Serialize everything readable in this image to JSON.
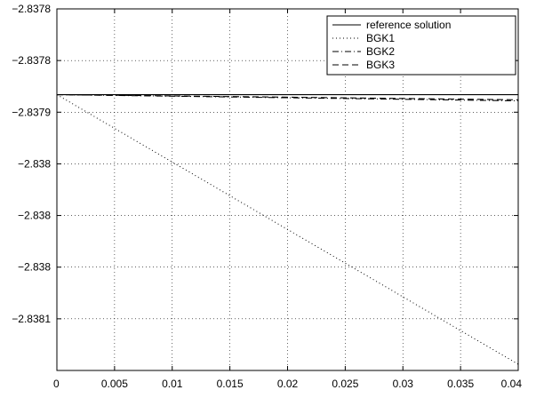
{
  "chart_data": {
    "type": "line",
    "title": "",
    "xlabel": "",
    "ylabel": "",
    "xlim": [
      0,
      0.04
    ],
    "ylim": [
      -2.83812,
      -2.83777
    ],
    "grid": true,
    "legend_position": "top-right",
    "xticks": [
      {
        "value": 0,
        "label": "0"
      },
      {
        "value": 0.005,
        "label": "0.005"
      },
      {
        "value": 0.01,
        "label": "0.01"
      },
      {
        "value": 0.015,
        "label": "0.015"
      },
      {
        "value": 0.02,
        "label": "0.02"
      },
      {
        "value": 0.025,
        "label": "0.025"
      },
      {
        "value": 0.03,
        "label": "0.03"
      },
      {
        "value": 0.035,
        "label": "0.035"
      },
      {
        "value": 0.04,
        "label": "0.04"
      }
    ],
    "yticks": [
      {
        "value": -2.83777,
        "label": "−2.8378"
      },
      {
        "value": -2.83782,
        "label": "−2.8378"
      },
      {
        "value": -2.83787,
        "label": "−2.8379"
      },
      {
        "value": -2.83792,
        "label": "−2.838"
      },
      {
        "value": -2.83797,
        "label": "−2.838"
      },
      {
        "value": -2.83802,
        "label": "−2.838"
      },
      {
        "value": -2.83807,
        "label": "−2.8381"
      }
    ],
    "series": [
      {
        "name": "reference solution",
        "style": "solid",
        "x": [
          0,
          0.04
        ],
        "y": [
          -2.837853,
          -2.837853
        ]
      },
      {
        "name": "BGK1",
        "style": "dotted",
        "x": [
          0,
          0.04
        ],
        "y": [
          -2.837853,
          -2.838114
        ]
      },
      {
        "name": "BGK2",
        "style": "dashdot",
        "x": [
          0,
          0.04
        ],
        "y": [
          -2.837853,
          -2.837859
        ]
      },
      {
        "name": "BGK3",
        "style": "dashed",
        "x": [
          0,
          0.04
        ],
        "y": [
          -2.837853,
          -2.837858
        ]
      }
    ]
  }
}
